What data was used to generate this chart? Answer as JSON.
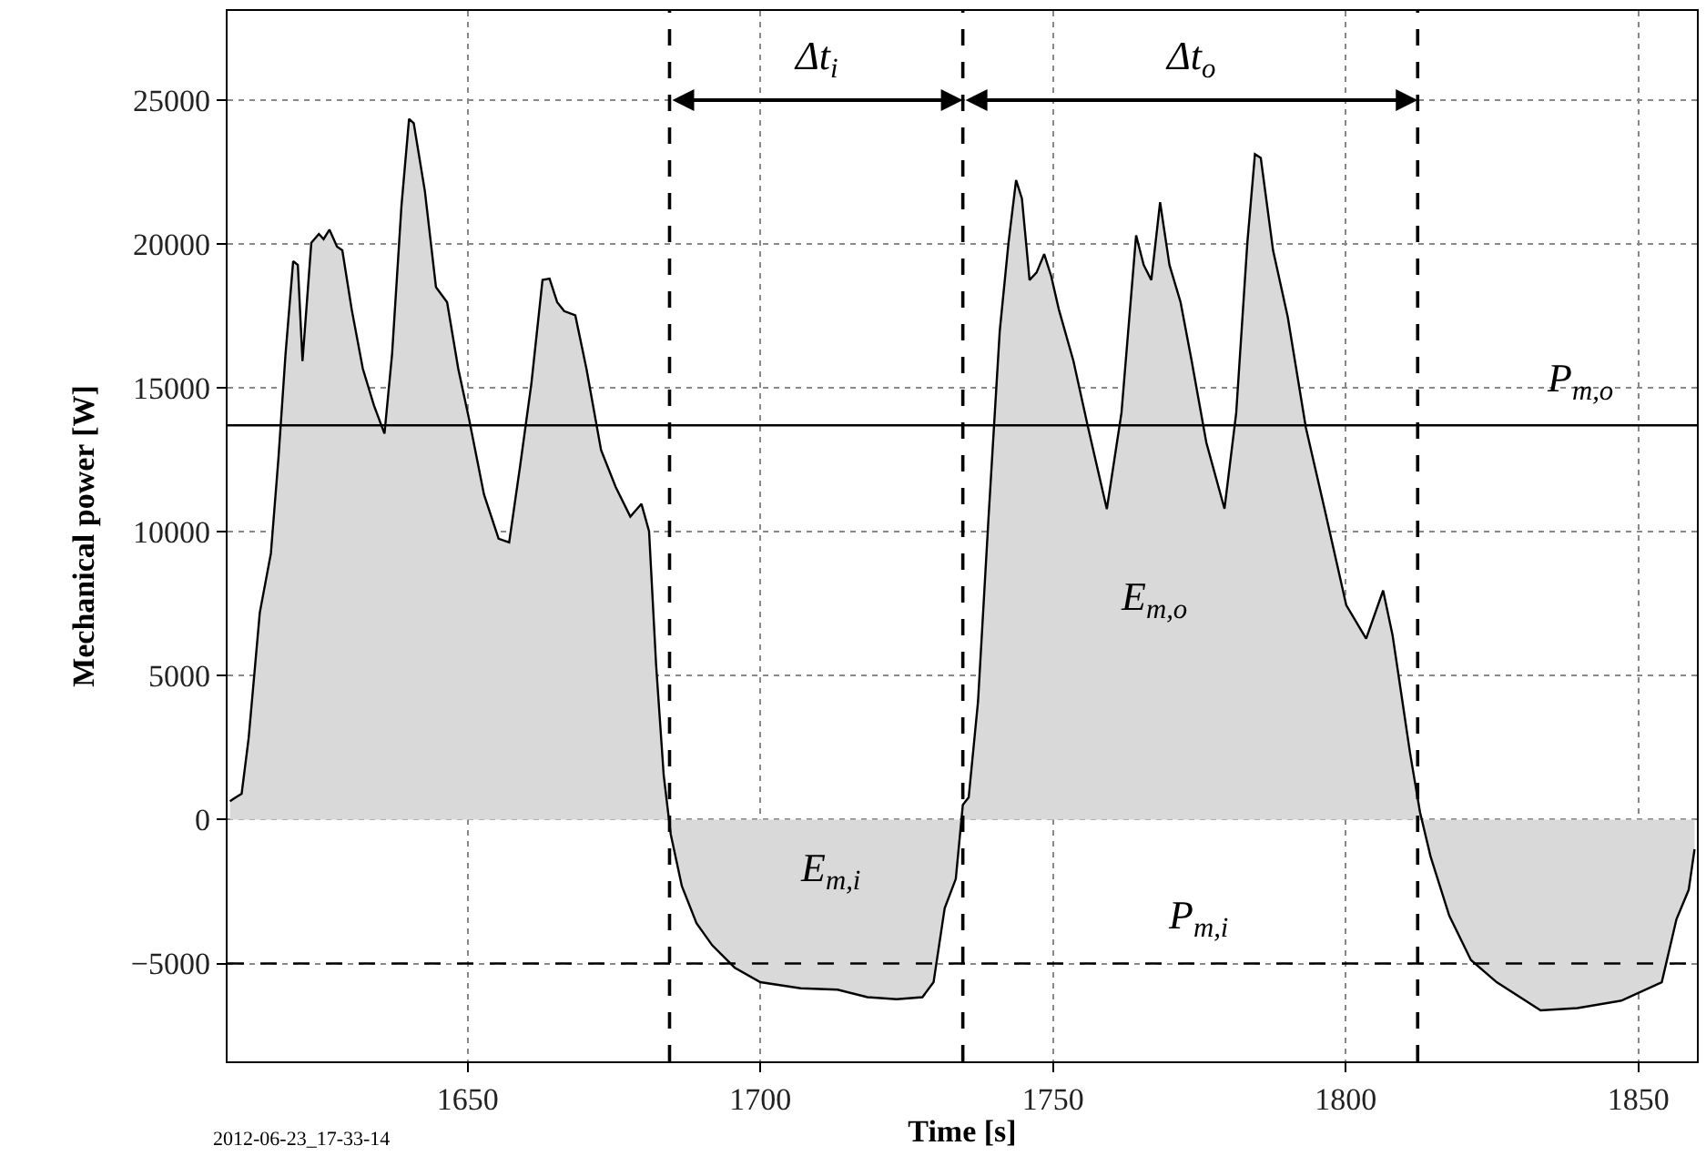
{
  "chart_data": {
    "type": "area",
    "xlabel": "Time [s]",
    "ylabel": "Mechanical power [W]",
    "xlim": [
      1609,
      1860
    ],
    "xticks": [
      1650,
      1700,
      1750,
      1800,
      1850
    ],
    "ylim": [
      -8400,
      28100
    ],
    "yticks": [
      {
        "value": -5000,
        "label": "−5000"
      },
      0,
      5000,
      10000,
      15000,
      20000,
      25000
    ],
    "grid": true,
    "series": [
      {
        "color": "#d9d9d9",
        "x": [
          1609.4,
          1610.4,
          1611.4,
          1612.6,
          1614.5,
          1616.4,
          1617.7,
          1618.9,
          1620.2,
          1621.0,
          1621.8,
          1623.3,
          1624.6,
          1625.4,
          1626.4,
          1627.7,
          1628.6,
          1630.2,
          1632.1,
          1634.0,
          1635.8,
          1637.1,
          1638.7,
          1640.0,
          1640.8,
          1642.7,
          1644.6,
          1646.5,
          1648.4,
          1650.3,
          1652.8,
          1655.3,
          1657.1,
          1659.0,
          1660.9,
          1662.8,
          1664.0,
          1665.3,
          1666.5,
          1668.4,
          1670.3,
          1672.8,
          1675.3,
          1677.8,
          1679.7,
          1681.0,
          1682.2,
          1683.5,
          1684.7,
          1686.6,
          1689.1,
          1691.8,
          1695.6,
          1700.0,
          1706.9,
          1713.2,
          1718.3,
          1723.3,
          1727.7,
          1729.6,
          1731.5,
          1733.4,
          1734.6,
          1735.6,
          1737.2,
          1739.0,
          1740.9,
          1742.4,
          1743.7,
          1744.7,
          1746.0,
          1747.2,
          1748.5,
          1749.7,
          1751.0,
          1753.5,
          1756.0,
          1759.2,
          1761.7,
          1764.2,
          1765.5,
          1766.8,
          1768.3,
          1769.9,
          1771.8,
          1773.7,
          1776.2,
          1779.3,
          1781.3,
          1783.2,
          1784.5,
          1785.5,
          1787.6,
          1790.1,
          1793.2,
          1796.4,
          1800.1,
          1803.5,
          1806.4,
          1808.0,
          1809.5,
          1811.0,
          1812.7,
          1814.5,
          1817.7,
          1821.4,
          1825.8,
          1833.3,
          1839.6,
          1847.1,
          1854.0,
          1856.5,
          1858.6,
          1859.6
        ],
        "values": [
          640,
          770,
          900,
          2830,
          7190,
          9250,
          12590,
          16180,
          19400,
          19270,
          15930,
          20040,
          20350,
          20170,
          20500,
          19910,
          19780,
          17730,
          15670,
          14390,
          13410,
          16180,
          21320,
          24350,
          24200,
          21840,
          18500,
          17980,
          15670,
          13870,
          11300,
          9760,
          9630,
          12330,
          15160,
          18750,
          18800,
          17980,
          17670,
          17520,
          15670,
          12840,
          11560,
          10530,
          10970,
          10020,
          5390,
          1540,
          -510,
          -2310,
          -3600,
          -4370,
          -5140,
          -5650,
          -5860,
          -5910,
          -6170,
          -6240,
          -6170,
          -5650,
          -3080,
          -2060,
          510,
          770,
          4110,
          10530,
          16960,
          20040,
          22220,
          21580,
          18750,
          19010,
          19650,
          18880,
          17730,
          15930,
          13620,
          10790,
          14130,
          20300,
          19270,
          18750,
          21450,
          19270,
          17980,
          15930,
          13100,
          10800,
          14130,
          20040,
          23120,
          22990,
          19780,
          17470,
          13620,
          10790,
          7450,
          6290,
          7960,
          6420,
          4370,
          2310,
          260,
          -1280,
          -3340,
          -4880,
          -5650,
          -6630,
          -6550,
          -6290,
          -5650,
          -3470,
          -2440,
          -1030
        ]
      }
    ],
    "ref_lines": [
      {
        "axis": "y",
        "value": 13700,
        "label": "P$_{m,o}$",
        "color": "#000000",
        "line_style": "solid"
      },
      {
        "axis": "y",
        "value": -5000,
        "label": "P$_{m,i}$",
        "color": "#000000",
        "line_style": "dashed"
      },
      {
        "axis": "x",
        "value": 1684.5,
        "color": "#000000",
        "line_style": "dashed"
      },
      {
        "axis": "x",
        "value": 1734.6,
        "color": "#000000",
        "line_style": "dashed"
      },
      {
        "axis": "x",
        "value": 1812.3,
        "color": "#000000",
        "line_style": "dashed"
      }
    ],
    "annotations": [
      "Δt$_{i}$",
      "Δt$_{o}$",
      "E$_{m,o}$",
      "E$_{m,i}$",
      "2012-06-23_17-33-14"
    ]
  }
}
